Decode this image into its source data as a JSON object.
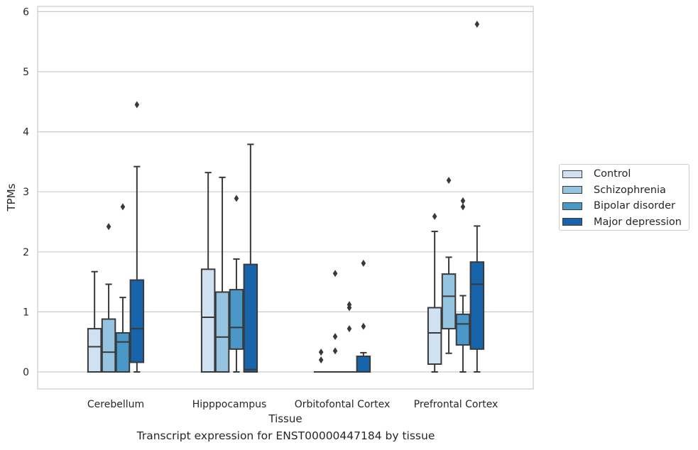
{
  "caption": "Transcript expression for ENST00000447184 by tissue",
  "chart_data": {
    "type": "box",
    "xlabel": "Tissue",
    "ylabel": "TPMs",
    "ylim": [
      -0.28,
      6.1
    ],
    "yticks": [
      0,
      1,
      2,
      3,
      4,
      5,
      6
    ],
    "grid": "horizontal",
    "legend_position": "right",
    "categories": [
      "Cerebellum",
      "Hipppocampus",
      "Orbitofontal Cortex",
      "Prefrontal Cortex"
    ],
    "series": [
      {
        "name": "Control",
        "color": "#d0e1f2",
        "boxes": [
          {
            "whisker_low": 0,
            "q1": 0,
            "median": 0.42,
            "q3": 0.72,
            "whisker_high": 1.67,
            "outliers": []
          },
          {
            "whisker_low": 0,
            "q1": 0,
            "median": 0.91,
            "q3": 1.71,
            "whisker_high": 3.32,
            "outliers": []
          },
          {
            "whisker_low": 0,
            "q1": 0,
            "median": 0,
            "q3": 0,
            "whisker_high": 0,
            "outliers": [
              0.2,
              0.33
            ]
          },
          {
            "whisker_low": 0,
            "q1": 0.13,
            "median": 0.65,
            "q3": 1.07,
            "whisker_high": 2.34,
            "outliers": [
              2.59
            ]
          }
        ]
      },
      {
        "name": "Schizophrenia",
        "color": "#94c4df",
        "boxes": [
          {
            "whisker_low": 0,
            "q1": 0,
            "median": 0.33,
            "q3": 0.88,
            "whisker_high": 1.46,
            "outliers": [
              2.42
            ]
          },
          {
            "whisker_low": 0,
            "q1": 0,
            "median": 0.58,
            "q3": 1.33,
            "whisker_high": 3.24,
            "outliers": []
          },
          {
            "whisker_low": 0,
            "q1": 0,
            "median": 0,
            "q3": 0,
            "whisker_high": 0,
            "outliers": [
              0.35,
              0.59,
              1.64
            ]
          },
          {
            "whisker_low": 0.31,
            "q1": 0.72,
            "median": 1.26,
            "q3": 1.63,
            "whisker_high": 1.91,
            "outliers": [
              3.19
            ]
          }
        ]
      },
      {
        "name": "Bipolar disorder",
        "color": "#4a98c9",
        "boxes": [
          {
            "whisker_low": 0,
            "q1": 0,
            "median": 0.5,
            "q3": 0.65,
            "whisker_high": 1.24,
            "outliers": [
              2.75
            ]
          },
          {
            "whisker_low": 0,
            "q1": 0.38,
            "median": 0.74,
            "q3": 1.37,
            "whisker_high": 1.88,
            "outliers": [
              2.89
            ]
          },
          {
            "whisker_low": 0,
            "q1": 0,
            "median": 0,
            "q3": 0,
            "whisker_high": 0,
            "outliers": [
              0.72,
              1.07,
              1.12
            ]
          },
          {
            "whisker_low": 0,
            "q1": 0.45,
            "median": 0.8,
            "q3": 0.96,
            "whisker_high": 1.27,
            "outliers": [
              2.75,
              2.85
            ]
          }
        ]
      },
      {
        "name": "Major depression",
        "color": "#1764ab",
        "boxes": [
          {
            "whisker_low": 0,
            "q1": 0.16,
            "median": 0.72,
            "q3": 1.53,
            "whisker_high": 3.42,
            "outliers": [
              4.45
            ]
          },
          {
            "whisker_low": 0,
            "q1": 0,
            "median": 0.04,
            "q3": 1.79,
            "whisker_high": 3.79,
            "outliers": []
          },
          {
            "whisker_low": 0,
            "q1": 0,
            "median": 0,
            "q3": 0.26,
            "whisker_high": 0.32,
            "outliers": [
              0.76,
              1.81
            ]
          },
          {
            "whisker_low": 0,
            "q1": 0.38,
            "median": 1.46,
            "q3": 1.83,
            "whisker_high": 2.43,
            "outliers": [
              5.79
            ]
          }
        ]
      }
    ]
  }
}
